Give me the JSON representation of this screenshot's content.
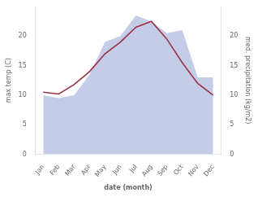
{
  "chart_data": {
    "type": "line",
    "categories": [
      "Jan",
      "Feb",
      "Mar",
      "Apr",
      "May",
      "Jun",
      "Jul",
      "Aug",
      "Sep",
      "Oct",
      "Nov",
      "Dec"
    ],
    "xlabel": "date (month)",
    "ylabel": "max temp (C)",
    "y2label": "med. precipitation (kg/m2)",
    "series": [
      {
        "type": "area",
        "axis": "y2",
        "color": "#c5cce8",
        "values": [
          10.0,
          9.5,
          10.0,
          13.5,
          19.0,
          20.0,
          23.5,
          22.5,
          20.5,
          21.0,
          13.0,
          13.0
        ]
      },
      {
        "type": "line",
        "color": "#993344",
        "values": [
          10.5,
          10.2,
          11.8,
          14.0,
          17.0,
          19.0,
          21.5,
          22.5,
          19.5,
          15.5,
          12.0,
          10.0
        ]
      }
    ],
    "ylim": [
      0,
      25
    ],
    "yticks": [
      0,
      5,
      10,
      15,
      20
    ],
    "y2lim": [
      0,
      25
    ],
    "y2ticks": [
      0,
      5,
      10,
      15,
      20
    ],
    "grid": false
  }
}
